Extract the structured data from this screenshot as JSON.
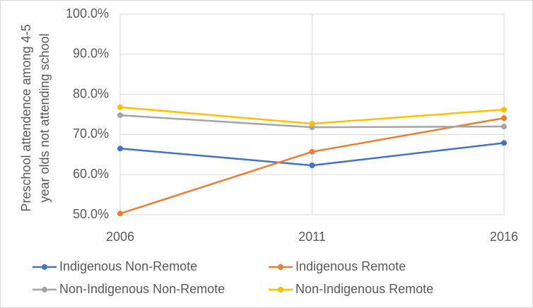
{
  "chart_data": {
    "type": "line",
    "y_label": [
      "Preschool attendence among 4-5",
      "year olds not attending school"
    ],
    "categories": [
      "2006",
      "2011",
      "2016"
    ],
    "series": [
      {
        "name": "Indigenous Non-Remote",
        "color": "#4472c4",
        "values": [
          66.5,
          62.3,
          67.9
        ]
      },
      {
        "name": "Indigenous Remote",
        "color": "#ed7d31",
        "values": [
          50.3,
          65.7,
          74.1
        ]
      },
      {
        "name": "Non-Indigenous Non-Remote",
        "color": "#a5a5a5",
        "values": [
          74.8,
          71.8,
          72.0
        ]
      },
      {
        "name": "Non-Indigenous Remote",
        "color": "#ffc000",
        "values": [
          76.8,
          72.7,
          76.2
        ]
      }
    ],
    "ylim": [
      50,
      100
    ],
    "yticks": [
      {
        "value": 50,
        "label": "50.0%"
      },
      {
        "value": 60,
        "label": "60.0%"
      },
      {
        "value": 70,
        "label": "70.0%"
      },
      {
        "value": 80,
        "label": "80.0%"
      },
      {
        "value": 90,
        "label": "90.0%"
      },
      {
        "value": 100,
        "label": "100.0%"
      }
    ],
    "grid": true
  }
}
